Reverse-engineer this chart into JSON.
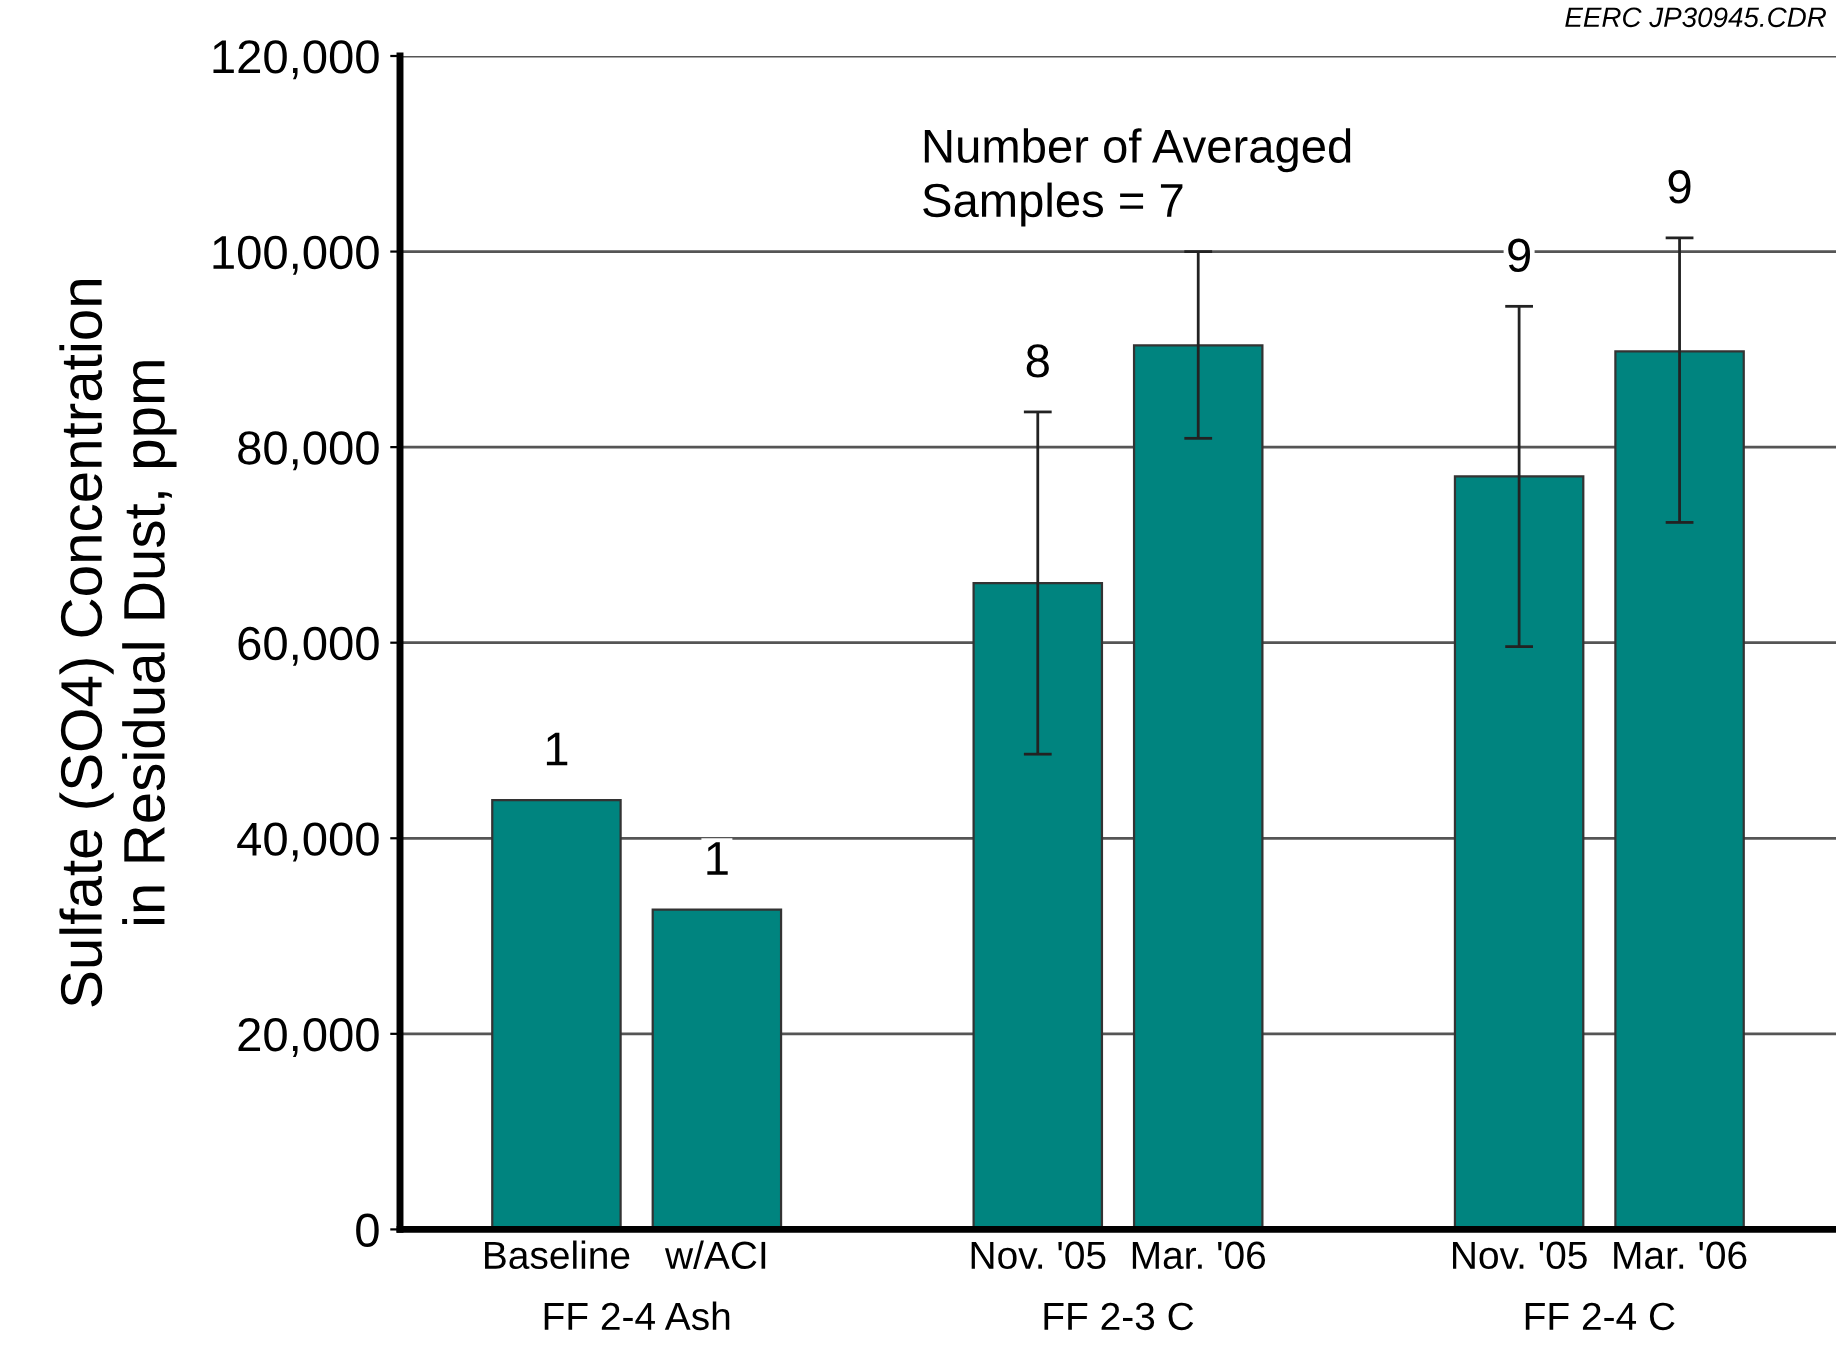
{
  "chart_data": {
    "type": "bar",
    "ylabel": "Sulfate (SO4) Concentration\nin Residual Dust, ppm",
    "categories": [
      "Baseline",
      "w/ACI",
      null,
      "Nov. '05",
      "Mar. '06",
      null,
      "Nov. '05",
      "Mar. '06"
    ],
    "values": [
      43900,
      32700,
      null,
      66100,
      90400,
      null,
      77000,
      89800
    ],
    "errors": [
      null,
      null,
      null,
      [
        48600,
        83600
      ],
      [
        80900,
        100000
      ],
      null,
      [
        59600,
        94400
      ],
      [
        72300,
        101400
      ]
    ],
    "color": "#00847f",
    "ylim": [
      0,
      120000
    ],
    "yticks": [
      {
        "value": 0,
        "label": "0"
      },
      {
        "value": 20000,
        "label": "20,000"
      },
      {
        "value": 40000,
        "label": "40,000"
      },
      {
        "value": 60000,
        "label": "60,000"
      },
      {
        "value": 80000,
        "label": "80,000"
      },
      {
        "value": 100000,
        "label": "100,000"
      },
      {
        "value": 120000,
        "label": "120,000"
      }
    ],
    "grid": "y",
    "annotations": [
      "FF 2-4 Ash",
      "FF 2-3 C",
      "FF 2-4 C",
      "EERC JP30945.CDR",
      {
        "text": "1",
        "x": "Baseline",
        "y": 43900
      },
      {
        "text": "1",
        "x": "w/ACI",
        "y": 32700
      },
      {
        "text": "8",
        "x": "Nov. '05",
        "y": 83600
      },
      {
        "text": "Number of Averaged\nSamples = 7",
        "x": "Mar. '06",
        "y": 100000
      },
      "9",
      "9"
    ]
  }
}
